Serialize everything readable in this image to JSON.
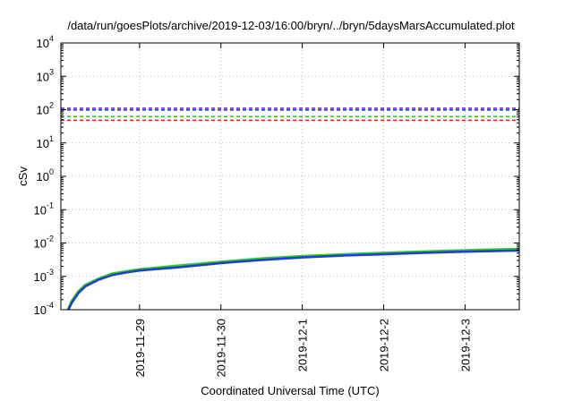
{
  "chart_data": {
    "type": "line",
    "title": "/data/run/goesPlots/archive/2019-12-03/16:00/bryn/../bryn/5daysMarsAccumulated.plot",
    "xlabel": "Coordinated Universal Time (UTC)",
    "ylabel": "cSv",
    "y_scale": "log",
    "ylim": [
      0.0001,
      10000
    ],
    "y_ticks": [
      {
        "value": 0.0001,
        "base": "10",
        "exp": "-4"
      },
      {
        "value": 0.001,
        "base": "10",
        "exp": "-3"
      },
      {
        "value": 0.01,
        "base": "10",
        "exp": "-2"
      },
      {
        "value": 0.1,
        "base": "10",
        "exp": "-1"
      },
      {
        "value": 1,
        "base": "10",
        "exp": "0"
      },
      {
        "value": 10,
        "base": "10",
        "exp": "1"
      },
      {
        "value": 100,
        "base": "10",
        "exp": "2"
      },
      {
        "value": 1000,
        "base": "10",
        "exp": "3"
      },
      {
        "value": 10000,
        "base": "10",
        "exp": "4"
      }
    ],
    "xlim": [
      "2019-11-28 00:48",
      "2019-12-03 16:00"
    ],
    "x_ticks": [
      "2019-11-29",
      "2019-11-30",
      "2019-12-1",
      "2019-12-2",
      "2019-12-3"
    ],
    "x_tick_values": [
      "2019-11-29 00:00",
      "2019-11-30 00:00",
      "2019-12-01 00:00",
      "2019-12-02 00:00",
      "2019-12-03 00:00"
    ],
    "grid": true,
    "reference_lines": [
      {
        "value": 110,
        "color": "#7a2cc4",
        "style": "dashed"
      },
      {
        "value": 98,
        "color": "#1f3fcf",
        "style": "dashed"
      },
      {
        "value": 62,
        "color": "#33cc33",
        "style": "dashed"
      },
      {
        "value": 48,
        "color": "#e02020",
        "style": "dashed"
      }
    ],
    "series": [
      {
        "color": "#33cc33",
        "x": [
          "2019-11-28 03:00",
          "2019-11-28 04:00",
          "2019-11-28 06:00",
          "2019-11-28 08:00",
          "2019-11-28 12:00",
          "2019-11-28 16:00",
          "2019-11-28 20:00",
          "2019-11-29 00:00",
          "2019-11-29 12:00",
          "2019-11-30 00:00",
          "2019-11-30 12:00",
          "2019-12-01 00:00",
          "2019-12-01 12:00",
          "2019-12-02 00:00",
          "2019-12-02 12:00",
          "2019-12-03 00:00",
          "2019-12-03 16:00"
        ],
        "y": [
          0.0001,
          0.00018,
          0.00035,
          0.00055,
          0.00085,
          0.0012,
          0.0014,
          0.0016,
          0.0021,
          0.0027,
          0.0034,
          0.004,
          0.0045,
          0.005,
          0.0055,
          0.006,
          0.0066
        ]
      },
      {
        "color": "#1f3fcf",
        "x": [
          "2019-11-28 03:00",
          "2019-11-28 04:00",
          "2019-11-28 06:00",
          "2019-11-28 08:00",
          "2019-11-28 12:00",
          "2019-11-28 16:00",
          "2019-11-28 20:00",
          "2019-11-29 00:00",
          "2019-11-29 12:00",
          "2019-11-30 00:00",
          "2019-11-30 12:00",
          "2019-12-01 00:00",
          "2019-12-01 12:00",
          "2019-12-02 00:00",
          "2019-12-02 12:00",
          "2019-12-03 00:00",
          "2019-12-03 16:00"
        ],
        "y": [
          0.0001,
          0.00016,
          0.00032,
          0.0005,
          0.0008,
          0.0011,
          0.0013,
          0.0015,
          0.0019,
          0.0025,
          0.0031,
          0.0037,
          0.0042,
          0.0046,
          0.0051,
          0.0055,
          0.006
        ]
      }
    ]
  }
}
